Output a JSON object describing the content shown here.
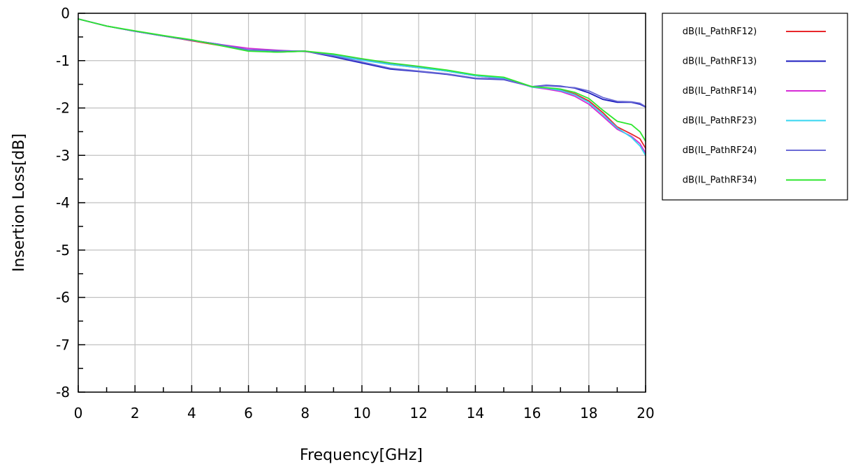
{
  "chart_data": {
    "type": "line",
    "xlabel": "Frequency[GHz]",
    "ylabel": "Insertion Loss[dB]",
    "xlim": [
      0,
      20
    ],
    "ylim": [
      -8,
      0
    ],
    "xticks": [
      "0",
      "2",
      "4",
      "6",
      "8",
      "10",
      "12",
      "14",
      "16",
      "18",
      "20"
    ],
    "yticks": [
      "0",
      "-1",
      "-2",
      "-3",
      "-4",
      "-5",
      "-6",
      "-7",
      "-8"
    ],
    "grid": true,
    "legend_position": "right",
    "series": [
      {
        "name": "dB(IL_PathRF12)",
        "color": "#e8262b",
        "x": [
          0,
          1,
          2,
          3,
          4,
          5,
          6,
          7,
          8,
          9,
          10,
          11,
          12,
          13,
          14,
          15,
          16,
          16.5,
          17,
          17.5,
          18,
          18.5,
          19,
          19.5,
          19.8,
          20
        ],
        "y": [
          -0.12,
          -0.27,
          -0.38,
          -0.48,
          -0.58,
          -0.68,
          -0.78,
          -0.82,
          -0.8,
          -0.88,
          -0.98,
          -1.08,
          -1.15,
          -1.22,
          -1.32,
          -1.38,
          -1.55,
          -1.58,
          -1.62,
          -1.7,
          -1.85,
          -2.1,
          -2.4,
          -2.55,
          -2.65,
          -2.85
        ]
      },
      {
        "name": "dB(IL_PathRF13)",
        "color": "#1b1bbf",
        "x": [
          0,
          1,
          2,
          3,
          4,
          5,
          6,
          7,
          8,
          9,
          10,
          11,
          12,
          13,
          14,
          15,
          16,
          16.5,
          17,
          17.5,
          18,
          18.5,
          19,
          19.5,
          19.8,
          20
        ],
        "y": [
          -0.12,
          -0.27,
          -0.38,
          -0.48,
          -0.57,
          -0.66,
          -0.78,
          -0.8,
          -0.8,
          -0.92,
          -1.05,
          -1.18,
          -1.23,
          -1.29,
          -1.38,
          -1.4,
          -1.55,
          -1.52,
          -1.54,
          -1.58,
          -1.68,
          -1.82,
          -1.88,
          -1.88,
          -1.92,
          -1.98
        ]
      },
      {
        "name": "dB(IL_PathRF14)",
        "color": "#d62bd6",
        "x": [
          0,
          1,
          2,
          3,
          4,
          5,
          6,
          7,
          8,
          9,
          10,
          11,
          12,
          13,
          14,
          15,
          16,
          16.5,
          17,
          17.5,
          18,
          18.5,
          19,
          19.5,
          19.8,
          20
        ],
        "y": [
          -0.12,
          -0.27,
          -0.38,
          -0.48,
          -0.57,
          -0.66,
          -0.74,
          -0.78,
          -0.81,
          -0.88,
          -0.98,
          -1.07,
          -1.14,
          -1.22,
          -1.32,
          -1.38,
          -1.56,
          -1.6,
          -1.65,
          -1.75,
          -1.92,
          -2.18,
          -2.45,
          -2.6,
          -2.75,
          -2.95
        ]
      },
      {
        "name": "dB(IL_PathRF23)",
        "color": "#33d6f0",
        "x": [
          0,
          1,
          2,
          3,
          4,
          5,
          6,
          7,
          8,
          9,
          10,
          11,
          12,
          13,
          14,
          15,
          16,
          16.5,
          17,
          17.5,
          18,
          18.5,
          19,
          19.5,
          19.8,
          20
        ],
        "y": [
          -0.12,
          -0.27,
          -0.38,
          -0.48,
          -0.57,
          -0.67,
          -0.78,
          -0.82,
          -0.8,
          -0.89,
          -0.99,
          -1.08,
          -1.15,
          -1.22,
          -1.32,
          -1.37,
          -1.56,
          -1.58,
          -1.63,
          -1.72,
          -1.88,
          -2.14,
          -2.42,
          -2.62,
          -2.8,
          -3.0
        ]
      },
      {
        "name": "dB(IL_PathRF24)",
        "color": "#6b6bd6",
        "x": [
          0,
          1,
          2,
          3,
          4,
          5,
          6,
          7,
          8,
          9,
          10,
          11,
          12,
          13,
          14,
          15,
          16,
          16.5,
          17,
          17.5,
          18,
          18.5,
          19,
          19.5,
          19.8,
          20
        ],
        "y": [
          -0.12,
          -0.27,
          -0.38,
          -0.48,
          -0.57,
          -0.66,
          -0.77,
          -0.79,
          -0.8,
          -0.9,
          -1.03,
          -1.16,
          -1.22,
          -1.28,
          -1.37,
          -1.39,
          -1.55,
          -1.53,
          -1.55,
          -1.57,
          -1.64,
          -1.78,
          -1.86,
          -1.87,
          -1.9,
          -1.97
        ]
      },
      {
        "name": "dB(IL_PathRF34)",
        "color": "#2ee62e",
        "x": [
          0,
          1,
          2,
          3,
          4,
          5,
          6,
          7,
          8,
          9,
          10,
          11,
          12,
          13,
          14,
          15,
          16,
          16.5,
          17,
          17.5,
          18,
          18.5,
          19,
          19.5,
          19.8,
          20
        ],
        "y": [
          -0.12,
          -0.27,
          -0.37,
          -0.47,
          -0.56,
          -0.68,
          -0.8,
          -0.82,
          -0.8,
          -0.86,
          -0.96,
          -1.05,
          -1.12,
          -1.2,
          -1.3,
          -1.35,
          -1.55,
          -1.57,
          -1.6,
          -1.67,
          -1.8,
          -2.05,
          -2.28,
          -2.35,
          -2.5,
          -2.7
        ]
      }
    ]
  }
}
